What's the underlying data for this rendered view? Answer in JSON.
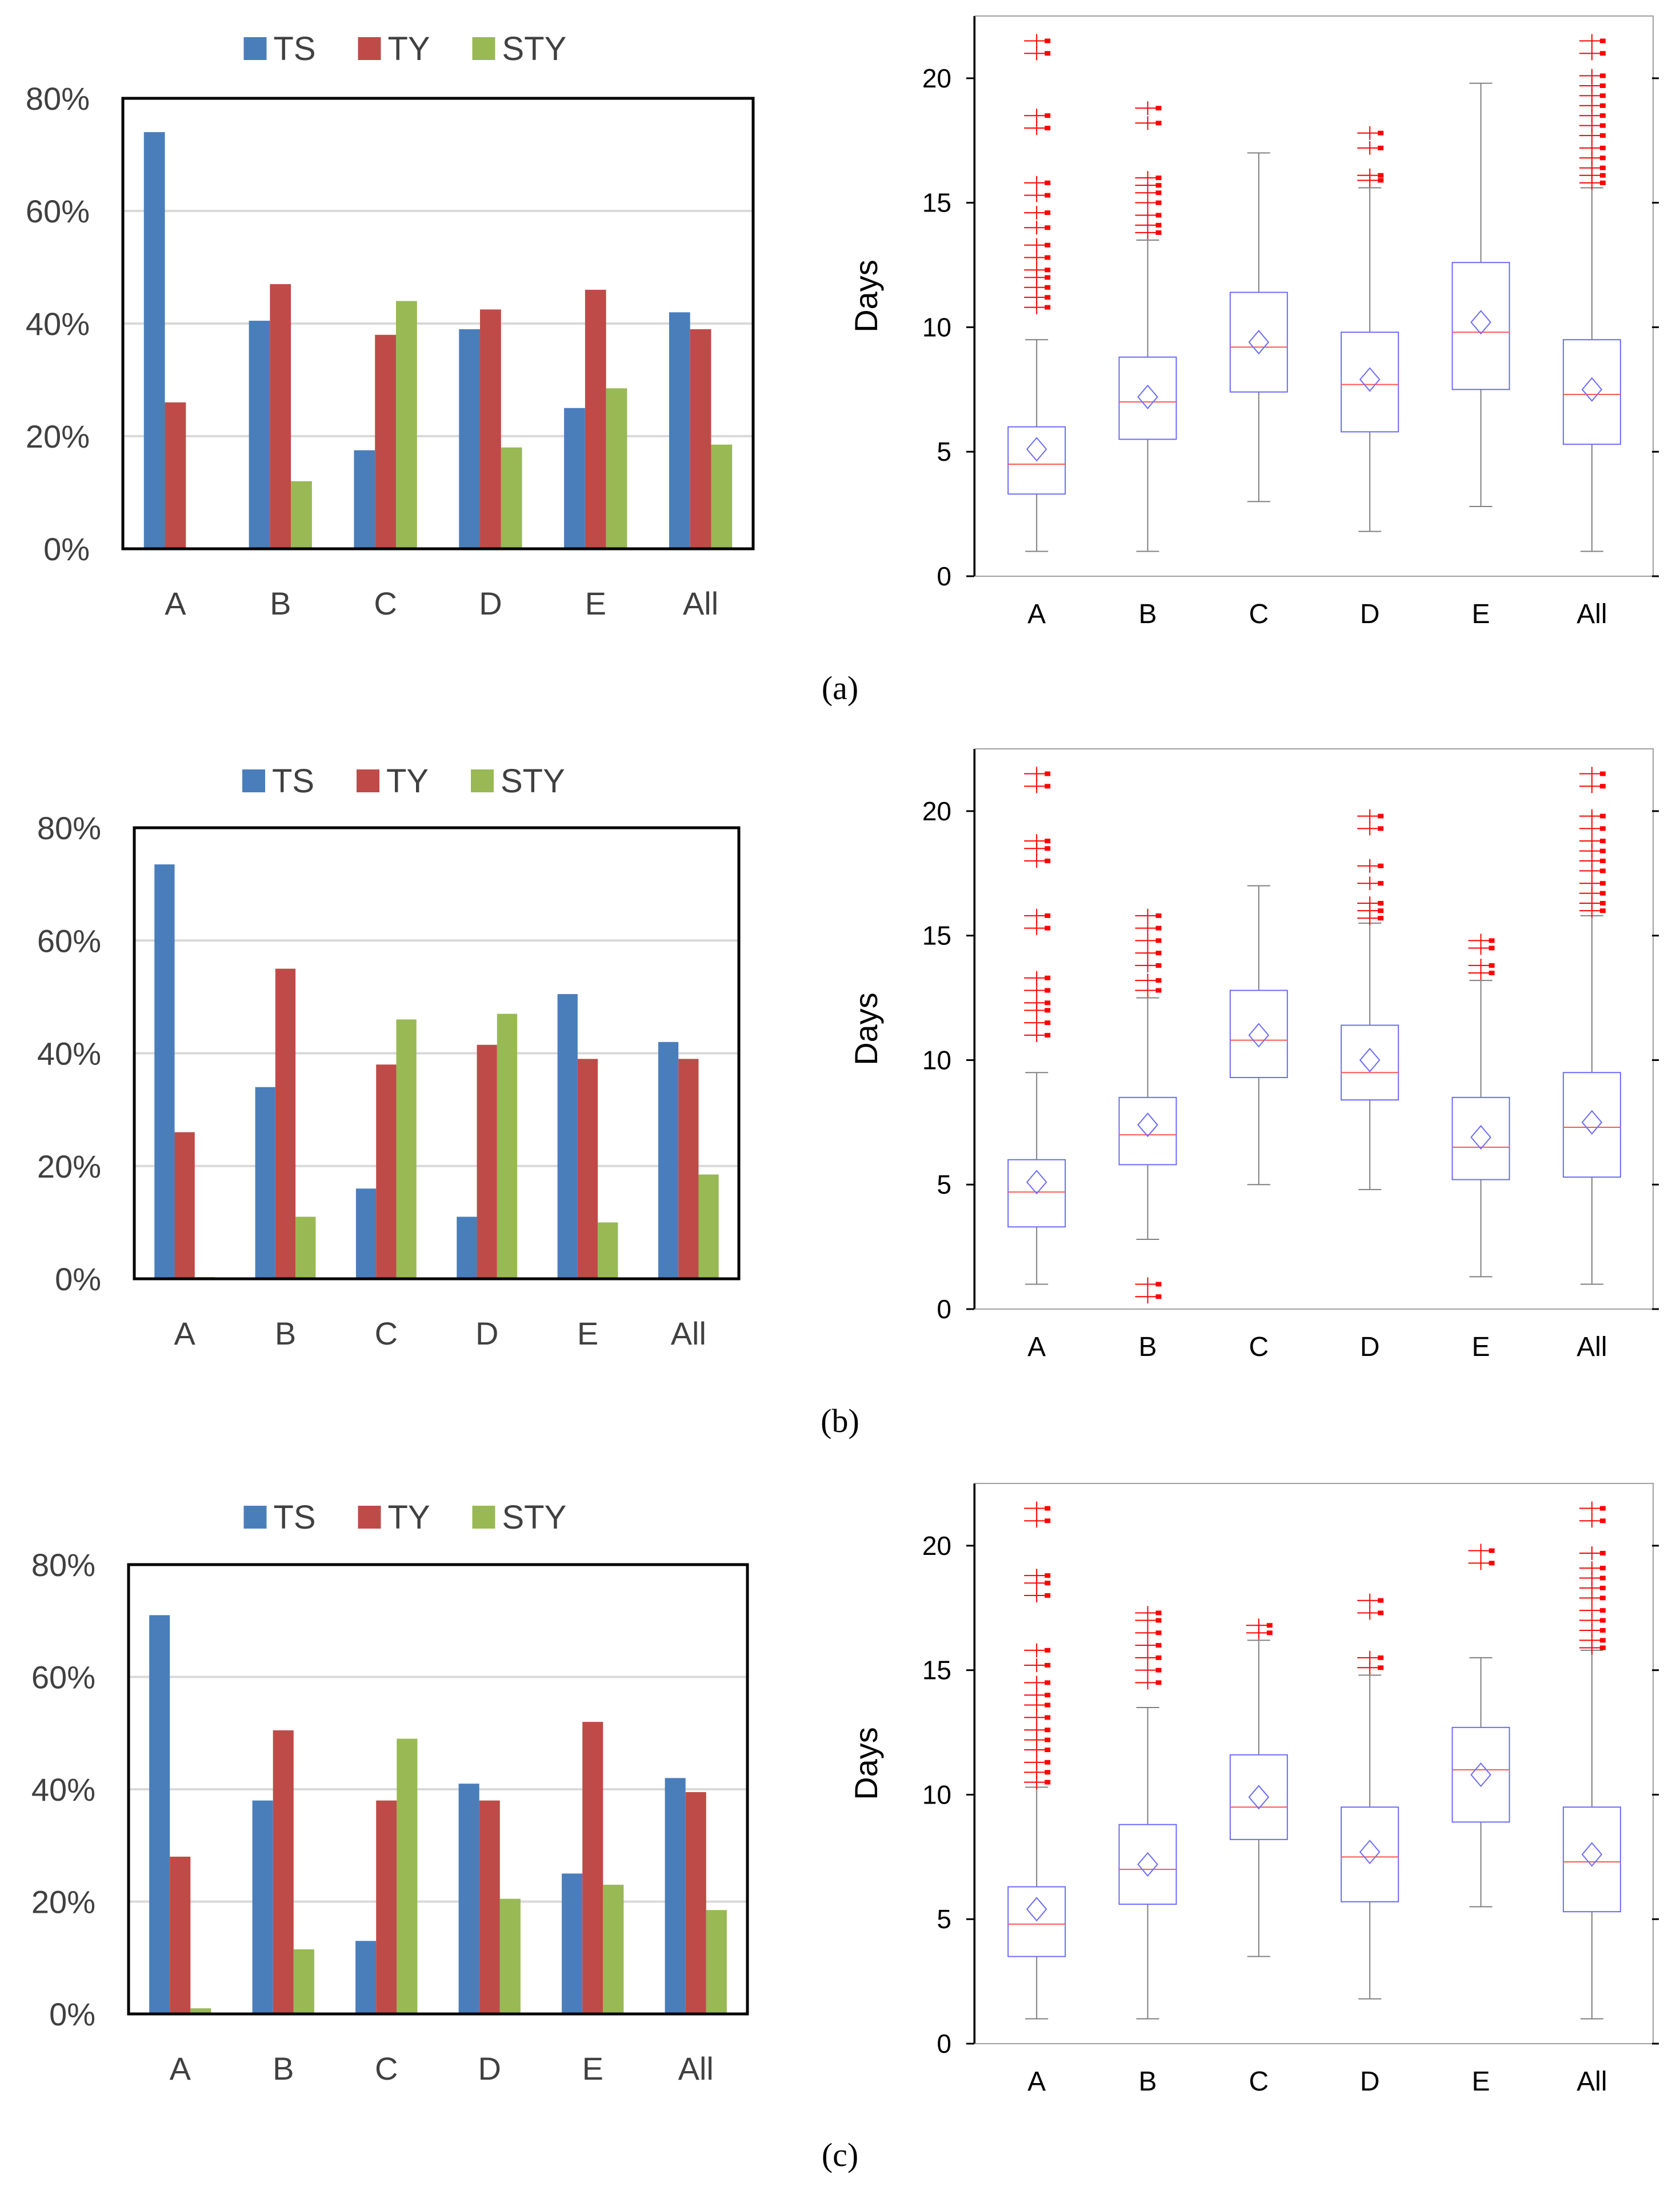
{
  "colors": {
    "ts": "#4a7ebb",
    "ty": "#be4b48",
    "sty": "#98b954",
    "box": "#6b6bff",
    "median": "#ff5555",
    "outlier": "#ff0000",
    "mean": "#6b6bff",
    "whisker": "#808080",
    "grid": "#d9d9d9",
    "frame": "#000000"
  },
  "chart_data": [
    {
      "panel": "a",
      "type": "bar",
      "categories": [
        "A",
        "B",
        "C",
        "D",
        "E",
        "All"
      ],
      "series": [
        {
          "name": "TS",
          "values": [
            74,
            40.5,
            17.5,
            39,
            25,
            42
          ]
        },
        {
          "name": "TY",
          "values": [
            26,
            47,
            38,
            42.5,
            46,
            39
          ]
        },
        {
          "name": "STY",
          "values": [
            0,
            12,
            44,
            18,
            28.5,
            18.5
          ]
        }
      ],
      "y_ticks": [
        "0%",
        "20%",
        "40%",
        "60%",
        "80%"
      ],
      "ylim": [
        0,
        80
      ],
      "grid": true,
      "legend": "top"
    },
    {
      "panel": "a",
      "type": "box",
      "ylabel": "Days",
      "categories": [
        "A",
        "B",
        "C",
        "D",
        "E",
        "All"
      ],
      "y_ticks": [
        "0",
        "5",
        "10",
        "15",
        "20"
      ],
      "ylim": [
        0,
        22.5
      ],
      "boxes": [
        {
          "min": 1,
          "q1": 3.3,
          "median": 4.5,
          "q3": 6,
          "max": 9.5,
          "mean": 5.1,
          "outliers": [
            10.8,
            11.2,
            11.6,
            12,
            12.3,
            12.8,
            13.3,
            14,
            14.6,
            15.3,
            15.8,
            18,
            18.5,
            21,
            21.5
          ]
        },
        {
          "min": 1,
          "q1": 5.5,
          "median": 7,
          "q3": 8.8,
          "max": 13.5,
          "mean": 7.2,
          "outliers": [
            13.8,
            14.1,
            14.5,
            15,
            15.4,
            15.7,
            16,
            18.2,
            18.8
          ]
        },
        {
          "min": 3,
          "q1": 7.4,
          "median": 9.2,
          "q3": 11.4,
          "max": 17,
          "mean": 9.4,
          "outliers": []
        },
        {
          "min": 1.8,
          "q1": 5.8,
          "median": 7.7,
          "q3": 9.8,
          "max": 15.6,
          "mean": 7.9,
          "outliers": [
            15.9,
            16.1,
            17.2,
            17.8
          ]
        },
        {
          "min": 2.8,
          "q1": 7.5,
          "median": 9.8,
          "q3": 12.6,
          "max": 19.8,
          "mean": 10.2,
          "outliers": []
        },
        {
          "min": 1,
          "q1": 5.3,
          "median": 7.3,
          "q3": 9.5,
          "max": 15.6,
          "mean": 7.5,
          "outliers": [
            15.8,
            16.1,
            16.4,
            16.8,
            17.2,
            17.7,
            18.1,
            18.5,
            18.9,
            19.3,
            19.7,
            20.1,
            21,
            21.5
          ]
        }
      ]
    },
    {
      "panel": "b",
      "type": "bar",
      "categories": [
        "A",
        "B",
        "C",
        "D",
        "E",
        "All"
      ],
      "series": [
        {
          "name": "TS",
          "values": [
            73.5,
            34,
            16,
            11,
            50.5,
            42
          ]
        },
        {
          "name": "TY",
          "values": [
            26,
            55,
            38,
            41.5,
            39,
            39
          ]
        },
        {
          "name": "STY",
          "values": [
            0.3,
            11,
            46,
            47,
            10,
            18.5
          ]
        }
      ],
      "y_ticks": [
        "0%",
        "20%",
        "40%",
        "60%",
        "80%"
      ],
      "ylim": [
        0,
        80
      ],
      "grid": true,
      "legend": "top"
    },
    {
      "panel": "b",
      "type": "box",
      "ylabel": "Days",
      "categories": [
        "A",
        "B",
        "C",
        "D",
        "E",
        "All"
      ],
      "y_ticks": [
        "0",
        "5",
        "10",
        "15",
        "20"
      ],
      "ylim": [
        0,
        22.5
      ],
      "boxes": [
        {
          "min": 1,
          "q1": 3.3,
          "median": 4.7,
          "q3": 6,
          "max": 9.5,
          "mean": 5.1,
          "outliers": [
            11,
            11.5,
            12,
            12.3,
            12.8,
            13.3,
            15.3,
            15.8,
            18,
            18.5,
            18.8,
            21,
            21.5
          ]
        },
        {
          "min": 2.8,
          "q1": 5.8,
          "median": 7,
          "q3": 8.5,
          "max": 12.5,
          "mean": 7.4,
          "outliers": [
            0.5,
            1,
            12.8,
            13.2,
            13.8,
            14.3,
            14.8,
            15.3,
            15.8
          ]
        },
        {
          "min": 5,
          "q1": 9.3,
          "median": 10.8,
          "q3": 12.8,
          "max": 17,
          "mean": 11,
          "outliers": []
        },
        {
          "min": 4.8,
          "q1": 8.4,
          "median": 9.5,
          "q3": 11.4,
          "max": 15.5,
          "mean": 10,
          "outliers": [
            15.7,
            16,
            16.3,
            17.1,
            17.8,
            19.3,
            19.8
          ]
        },
        {
          "min": 1.3,
          "q1": 5.2,
          "median": 6.5,
          "q3": 8.5,
          "max": 13.2,
          "mean": 6.9,
          "outliers": [
            13.5,
            13.8,
            14.5,
            14.8
          ]
        },
        {
          "min": 1,
          "q1": 5.3,
          "median": 7.3,
          "q3": 9.5,
          "max": 15.8,
          "mean": 7.5,
          "outliers": [
            16,
            16.3,
            16.7,
            17.1,
            17.6,
            18,
            18.4,
            18.8,
            19.3,
            19.8,
            21,
            21.5
          ]
        }
      ]
    },
    {
      "panel": "c",
      "type": "bar",
      "categories": [
        "A",
        "B",
        "C",
        "D",
        "E",
        "All"
      ],
      "series": [
        {
          "name": "TS",
          "values": [
            71,
            38,
            13,
            41,
            25,
            42
          ]
        },
        {
          "name": "TY",
          "values": [
            28,
            50.5,
            38,
            38,
            52,
            39.5
          ]
        },
        {
          "name": "STY",
          "values": [
            1,
            11.5,
            49,
            20.5,
            23,
            18.5
          ]
        }
      ],
      "y_ticks": [
        "0%",
        "20%",
        "40%",
        "60%",
        "80%"
      ],
      "ylim": [
        0,
        80
      ],
      "grid": true,
      "legend": "top"
    },
    {
      "panel": "c",
      "type": "box",
      "ylabel": "Days",
      "categories": [
        "A",
        "B",
        "C",
        "D",
        "E",
        "All"
      ],
      "y_ticks": [
        "0",
        "5",
        "10",
        "15",
        "20"
      ],
      "ylim": [
        0,
        22.5
      ],
      "boxes": [
        {
          "min": 1,
          "q1": 3.5,
          "median": 4.8,
          "q3": 6.3,
          "max": 10.3,
          "mean": 5.4,
          "outliers": [
            10.5,
            10.9,
            11.3,
            11.8,
            12.2,
            12.6,
            13.1,
            13.6,
            14,
            14.5,
            15.2,
            15.8,
            18,
            18.5,
            18.8,
            21,
            21.5
          ]
        },
        {
          "min": 1,
          "q1": 5.6,
          "median": 7,
          "q3": 8.8,
          "max": 13.5,
          "mean": 7.2,
          "outliers": [
            14.5,
            15,
            15.5,
            16,
            16.5,
            17,
            17.3
          ]
        },
        {
          "min": 3.5,
          "q1": 8.2,
          "median": 9.5,
          "q3": 11.6,
          "max": 16.2,
          "mean": 9.9,
          "outliers": [
            16.5,
            16.8
          ]
        },
        {
          "min": 1.8,
          "q1": 5.7,
          "median": 7.5,
          "q3": 9.5,
          "max": 14.8,
          "mean": 7.7,
          "outliers": [
            15.1,
            15.5,
            17.3,
            17.8
          ]
        },
        {
          "min": 5.5,
          "q1": 8.9,
          "median": 11,
          "q3": 12.7,
          "max": 15.5,
          "mean": 10.8,
          "outliers": [
            19.3,
            19.8
          ]
        },
        {
          "min": 1,
          "q1": 5.3,
          "median": 7.3,
          "q3": 9.5,
          "max": 15.8,
          "mean": 7.6,
          "outliers": [
            15.9,
            16.2,
            16.6,
            17,
            17.4,
            17.9,
            18.3,
            18.7,
            19.1,
            19.7,
            21,
            21.5
          ]
        }
      ]
    }
  ],
  "captions": [
    {
      "label": "(a)"
    },
    {
      "label": "(b)"
    },
    {
      "label": "(c)"
    }
  ]
}
